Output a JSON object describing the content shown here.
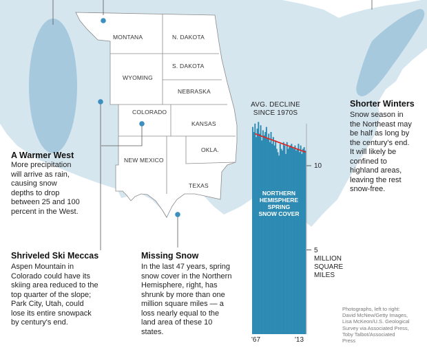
{
  "colors": {
    "map_fill": "#d6e6ef",
    "west_fill": "#ffffff",
    "highlight": "#a6c9de",
    "marker": "#3d8fbf",
    "chart_fill": "#2d8bb3",
    "trend": "#d62b2b",
    "text": "#222222"
  },
  "states": [
    "MONTANA",
    "N. DAKOTA",
    "WYOMING",
    "S. DAKOTA",
    "NEBRASKA",
    "COLORADO",
    "KANSAS",
    "NEW MEXICO",
    "OKLA.",
    "TEXAS"
  ],
  "annotations": {
    "warmer_west": {
      "title": "A Warmer West",
      "body": [
        "More precipitation",
        "will arrive as rain,",
        "causing snow",
        "depths to drop",
        "between 25 and 100",
        "percent in the West."
      ]
    },
    "ski_meccas": {
      "title": "Shriveled Ski Meccas",
      "body": [
        "Aspen Mountain in",
        "Colorado could have its",
        "skiing area reduced to the",
        "top quarter of the slope;",
        "Park City, Utah, could",
        "lose its entire snowpack",
        "by century's end."
      ]
    },
    "missing_snow": {
      "title": "Missing Snow",
      "body": [
        "In the last 47 years, spring",
        "snow cover in the Northern",
        "Hemisphere, right, has",
        "shrunk by more than one",
        "million square miles — a",
        "loss nearly equal to the",
        "land area of these 10",
        "states."
      ]
    },
    "shorter_winters": {
      "title": "Shorter Winters",
      "body": [
        "Snow season in",
        "the Northeast may",
        "be half as long by",
        "the century's end.",
        "It will likely be",
        "confined to",
        "highland areas,",
        "leaving the rest",
        "snow-free."
      ]
    }
  },
  "chart_data": {
    "type": "bar",
    "title": "NORTHERN HEMISPHERE SPRING SNOW COVER",
    "annotation": "AVG. DECLINE SINCE 1970S",
    "title_lines": [
      "NORTHERN",
      "HEMISPHERE",
      "SPRING",
      "SNOW COVER"
    ],
    "annotation_lines": [
      "AVG. DECLINE",
      "SINCE 1970S"
    ],
    "x_start_label": "'67",
    "x_end_label": "'13",
    "ylim": [
      0,
      13.5
    ],
    "y_ticks": [
      {
        "value": 10,
        "label": "10"
      },
      {
        "value": 5,
        "label": "5"
      }
    ],
    "y_unit_lines": [
      "MILLION",
      "SQUARE",
      "MILES"
    ],
    "years_start": 1967,
    "values": [
      12.3,
      12.0,
      12.5,
      11.7,
      12.2,
      12.6,
      11.9,
      12.4,
      11.5,
      12.1,
      11.8,
      12.0,
      12.3,
      11.6,
      11.9,
      11.4,
      12.0,
      11.3,
      11.7,
      11.2,
      11.5,
      11.0,
      10.8,
      10.6,
      11.3,
      11.0,
      10.9,
      11.4,
      11.2,
      10.7,
      11.4,
      11.0,
      11.1,
      11.2,
      11.3,
      11.1,
      11.0,
      11.2,
      10.9,
      11.0,
      11.3,
      10.8,
      11.2,
      10.7,
      11.0,
      11.1,
      10.9
    ],
    "trend": {
      "start": 11.9,
      "end": 10.8
    }
  },
  "credits": [
    "Photographs, left to right:",
    "David McNew/Getty Images,",
    "Lisa McKeon/U.S. Geological",
    "Survey via Associated Press,",
    "Toby Talbot/Associated",
    "Press"
  ]
}
